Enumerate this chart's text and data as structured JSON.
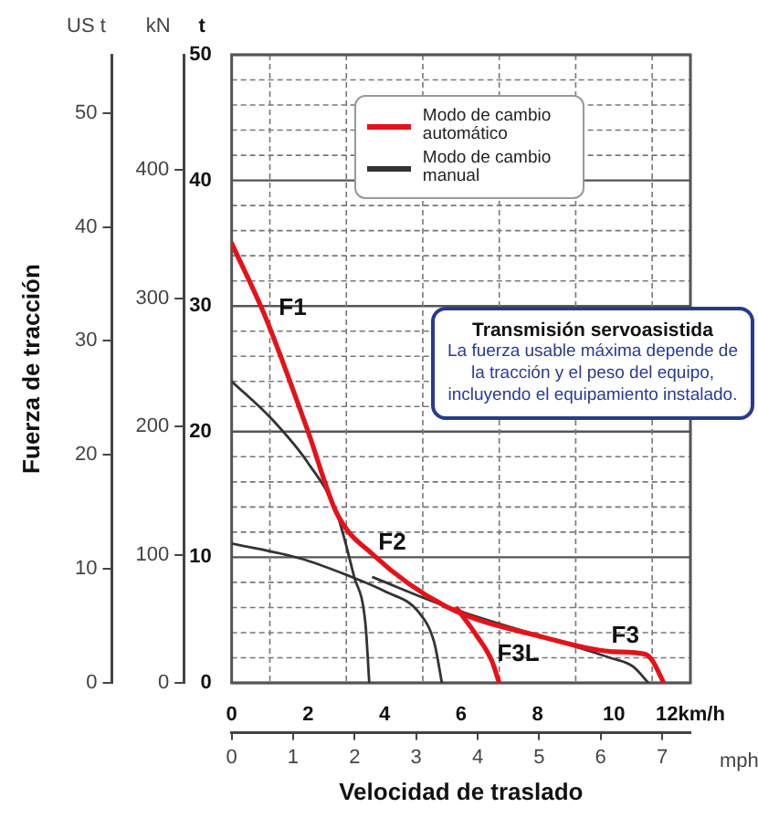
{
  "chart_data": {
    "type": "line",
    "xlabel": "Velocidad de traslado",
    "ylabel": "t",
    "y2label": "kN",
    "y3label": "US t",
    "x2label": "mph",
    "xlim": [
      0,
      12
    ],
    "xticks": [
      0,
      {
        "value": 1,
        "label": null
      },
      2,
      {
        "value": 3,
        "label": null
      },
      4,
      {
        "value": 5,
        "label": null
      },
      6,
      {
        "value": 7,
        "label": null
      },
      8,
      {
        "value": 9,
        "label": null
      },
      10,
      {
        "value": 11,
        "label": null
      },
      {
        "value": 12,
        "label": "12km/h"
      }
    ],
    "x2lim": [
      0,
      7.46
    ],
    "x2ticks": [
      0,
      1,
      2,
      3,
      4,
      5,
      6,
      7
    ],
    "ylim": [
      0,
      50
    ],
    "yticks": [
      0,
      {
        "value": 2,
        "label": null
      },
      {
        "value": 4,
        "label": null
      },
      {
        "value": 6,
        "label": null
      },
      {
        "value": 8,
        "label": null
      },
      10,
      {
        "value": 12,
        "label": null
      },
      {
        "value": 14,
        "label": null
      },
      {
        "value": 16,
        "label": null
      },
      {
        "value": 18,
        "label": null
      },
      20,
      {
        "value": 22,
        "label": null
      },
      {
        "value": 24,
        "label": null
      },
      {
        "value": 26,
        "label": null
      },
      {
        "value": 28,
        "label": null
      },
      30,
      {
        "value": 32,
        "label": null
      },
      {
        "value": 34,
        "label": null
      },
      {
        "value": 36,
        "label": null
      },
      {
        "value": 38,
        "label": null
      },
      40,
      {
        "value": 42,
        "label": null
      },
      {
        "value": 44,
        "label": null
      },
      {
        "value": 46,
        "label": null
      },
      {
        "value": 48,
        "label": null
      },
      50
    ],
    "y2lim": [
      0,
      490
    ],
    "y2ticks": [
      0,
      100,
      200,
      300,
      400
    ],
    "y3lim": [
      0,
      55.1
    ],
    "y3ticks": [
      0,
      10,
      20,
      30,
      40,
      50
    ],
    "grid": true,
    "legend": "top",
    "marker": "none",
    "series": [
      {
        "name": "Modo de cambio automático",
        "color": "#e3131b",
        "x": [
          0,
          0.9,
          2,
          2.75,
          3.7,
          5.6,
          8.2,
          9.9,
          10.8,
          11.0,
          11.3
        ],
        "values": [
          35,
          29,
          20,
          13.5,
          10.2,
          6.1,
          3.6,
          2.5,
          2.3,
          1.8,
          0
        ]
      },
      {
        "color": "#e3131b",
        "x": [
          5.9,
          6.4,
          6.8,
          7.0
        ],
        "values": [
          5.9,
          3.8,
          1.8,
          0
        ]
      },
      {
        "name": "Modo de cambio manual",
        "color": "#333333",
        "x": [
          0,
          1.05,
          2.0,
          2.75,
          3.2,
          3.5,
          3.6
        ],
        "values": [
          24,
          21,
          17.5,
          13.5,
          8.5,
          4.7,
          0
        ]
      },
      {
        "color": "#333333",
        "x": [
          0,
          1.8,
          3.0,
          4.0,
          4.9,
          5.3,
          5.5
        ],
        "values": [
          11.1,
          9.9,
          8.6,
          7.3,
          5.6,
          3.2,
          0
        ]
      },
      {
        "color": "#333333",
        "x": [
          3.7,
          5.6,
          8.2,
          9.9,
          10.5,
          10.9
        ],
        "values": [
          8.4,
          6.1,
          3.6,
          2.0,
          1.3,
          0
        ]
      }
    ],
    "annotations": [
      "F1",
      "F2",
      "F3L",
      "F3",
      "Fuerza de tracción",
      "Transmisión servoasistida",
      "La fuerza usable máxima depende de la tracción y el peso del equipo, incluyendo el equipamiento instalado."
    ]
  }
}
